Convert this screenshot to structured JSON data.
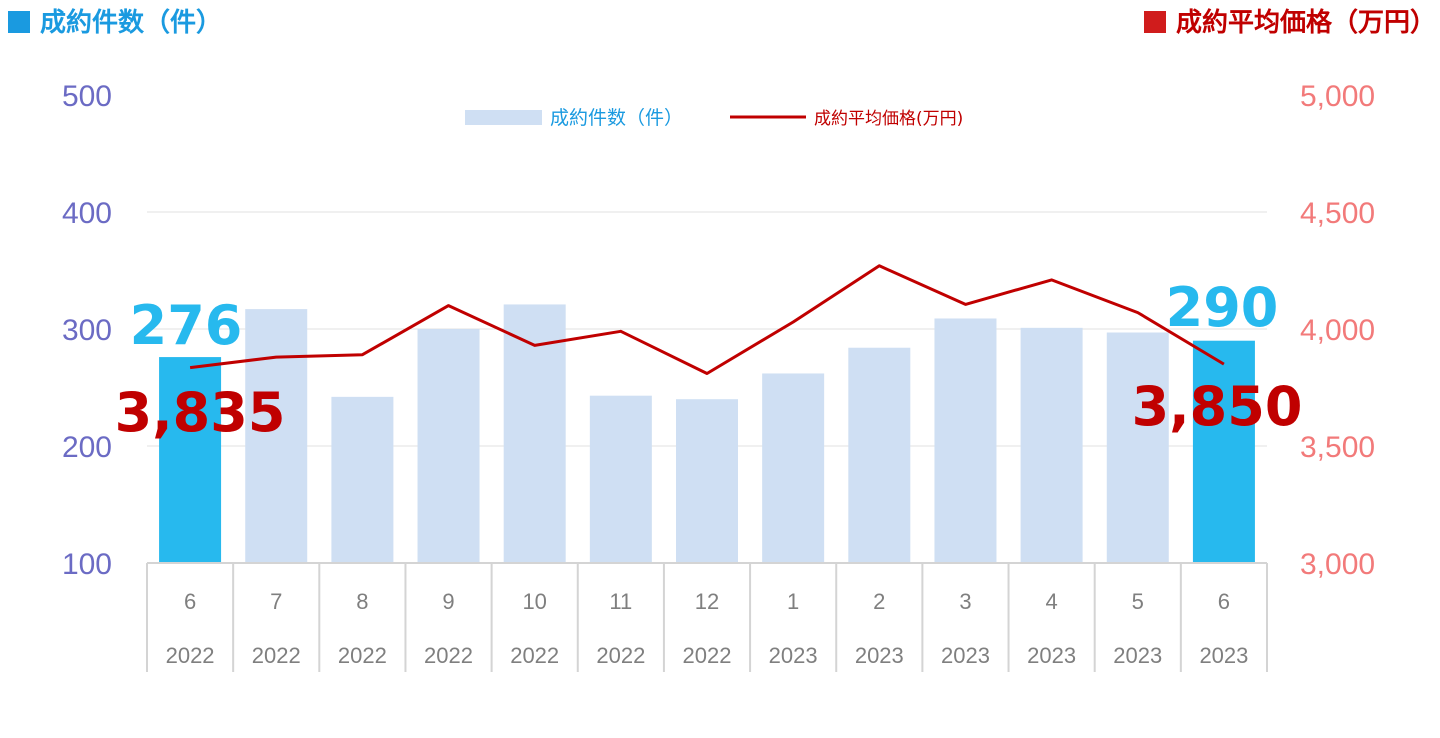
{
  "header": {
    "left_title": "成約件数（件）",
    "right_title": "成約平均価格（万円）"
  },
  "colors": {
    "bar": "#cfdff3",
    "bar_highlight": "#27b9ee",
    "line": "#c00000",
    "left_axis": "#6b6bc4",
    "right_axis": "#f27a7a",
    "left_title": "#1a9ae0",
    "right_title": "#c00000",
    "grid": "#e2e2e2",
    "category_text": "#7f7f7f"
  },
  "chart_data": {
    "type": "bar",
    "categories": [
      {
        "month": "6",
        "year": "2022"
      },
      {
        "month": "7",
        "year": "2022"
      },
      {
        "month": "8",
        "year": "2022"
      },
      {
        "month": "9",
        "year": "2022"
      },
      {
        "month": "10",
        "year": "2022"
      },
      {
        "month": "11",
        "year": "2022"
      },
      {
        "month": "12",
        "year": "2022"
      },
      {
        "month": "1",
        "year": "2023"
      },
      {
        "month": "2",
        "year": "2023"
      },
      {
        "month": "3",
        "year": "2023"
      },
      {
        "month": "4",
        "year": "2023"
      },
      {
        "month": "5",
        "year": "2023"
      },
      {
        "month": "6",
        "year": "2023"
      }
    ],
    "series": [
      {
        "name": "成約件数（件）",
        "type": "bar",
        "axis": "left",
        "values": [
          276,
          317,
          242,
          300,
          321,
          243,
          240,
          262,
          284,
          309,
          301,
          297,
          290
        ],
        "highlight": [
          0,
          12
        ]
      },
      {
        "name": "成約平均価格(万円)",
        "type": "line",
        "axis": "right",
        "values": [
          3835,
          3880,
          3890,
          4100,
          3930,
          3990,
          3810,
          4030,
          4270,
          4105,
          4210,
          4070,
          3850
        ]
      }
    ],
    "y_left": {
      "min": 100,
      "max": 500,
      "ticks": [
        "100",
        "200",
        "300",
        "400",
        "500"
      ]
    },
    "y_right": {
      "min": 3000,
      "max": 5000,
      "ticks": [
        "3,000",
        "3,500",
        "4,000",
        "4,500",
        "5,000"
      ]
    },
    "grid": true,
    "legend_position": "top-center",
    "annotations": [
      {
        "text": "276",
        "series": 0,
        "index": 0
      },
      {
        "text": "3,835",
        "series": 1,
        "index": 0
      },
      {
        "text": "290",
        "series": 0,
        "index": 12
      },
      {
        "text": "3,850",
        "series": 1,
        "index": 12
      }
    ]
  }
}
